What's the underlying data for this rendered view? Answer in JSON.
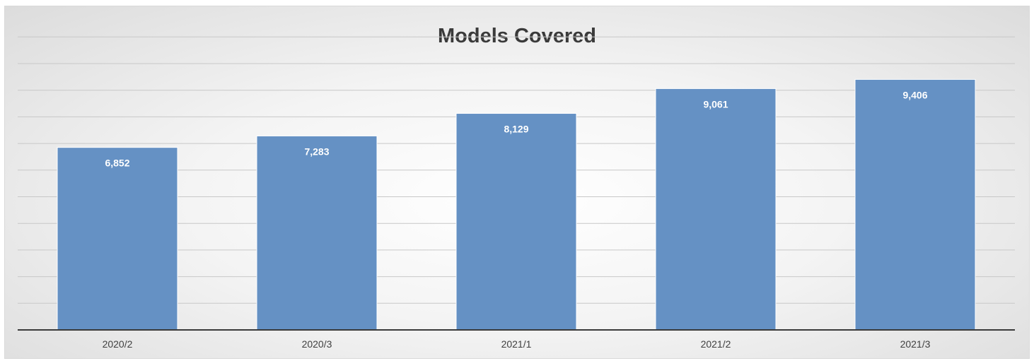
{
  "chart_data": {
    "type": "bar",
    "title": "Models Covered",
    "xlabel": "",
    "ylabel": "",
    "categories": [
      "2020/2",
      "2020/3",
      "2021/1",
      "2021/2",
      "2021/3"
    ],
    "values": [
      6852,
      7283,
      8129,
      9061,
      9406
    ],
    "value_labels": [
      "6,852",
      "7,283",
      "8,129",
      "9,061",
      "9,406"
    ],
    "ylim": [
      0,
      11000
    ],
    "grid": true,
    "legend": "none",
    "bar_color": "#6591c4",
    "bar_edge_color": "#ffffff",
    "axis_color": "#3a3a3a",
    "gridline_color": "#c8c8c8"
  }
}
